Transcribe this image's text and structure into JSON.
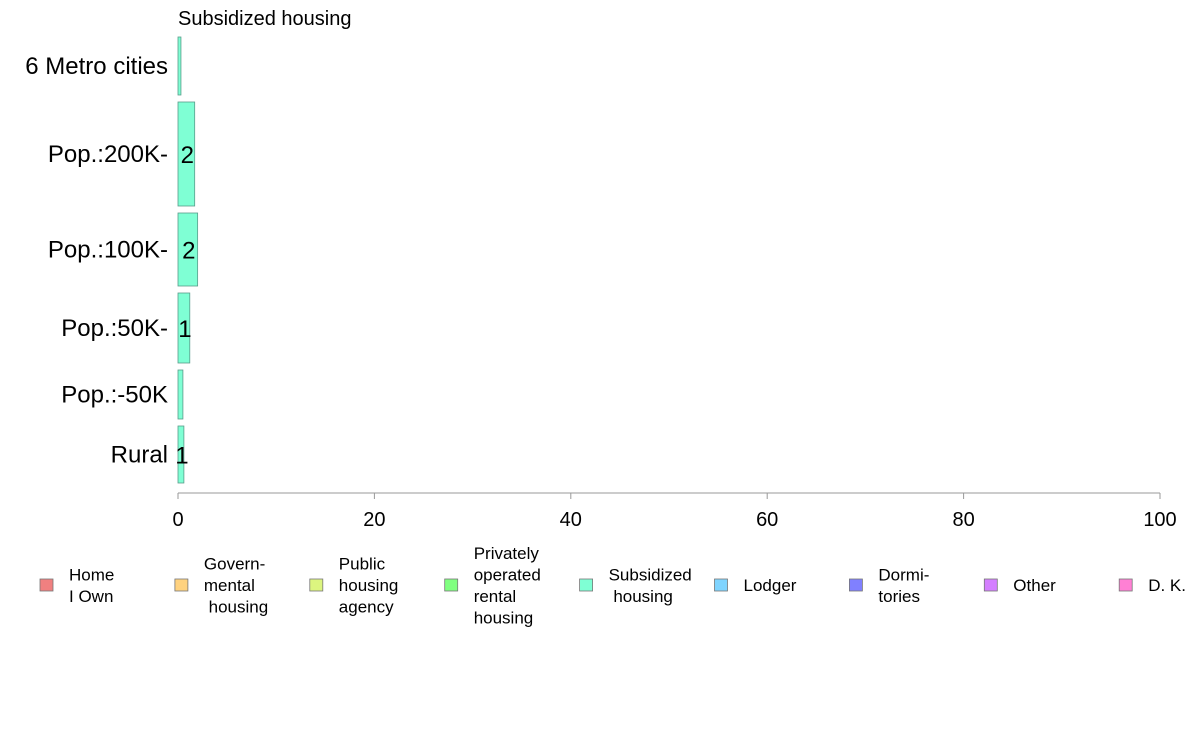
{
  "chart_data": {
    "type": "bar",
    "orientation": "horizontal",
    "title": "Subsidized housing",
    "categories": [
      "6 Metro cities",
      "Pop.:200K-",
      "Pop.:100K-",
      "Pop.:50K-",
      "Pop.:-50K",
      "Rural"
    ],
    "values": [
      0.3,
      1.7,
      2.0,
      1.2,
      0.5,
      0.6
    ],
    "data_labels": [
      "",
      "2",
      "2",
      "1",
      "",
      "1"
    ],
    "bar_color": "#7fffd4",
    "xlim": [
      0,
      100
    ],
    "x_ticks": [
      "0",
      "20",
      "40",
      "60",
      "80",
      "100"
    ],
    "grid": false,
    "legend_position": "bottom",
    "legend": [
      {
        "lines": [
          "Home",
          "I Own"
        ],
        "color": "#f08080"
      },
      {
        "lines": [
          "Govern-",
          "mental",
          " housing"
        ],
        "color": "#ffd27f"
      },
      {
        "lines": [
          "Public",
          "housing",
          "agency"
        ],
        "color": "#dcf57f"
      },
      {
        "lines": [
          "Privately",
          "operated",
          "rental",
          "housing"
        ],
        "color": "#80ff80"
      },
      {
        "lines": [
          "Subsidized",
          " housing"
        ],
        "color": "#7fffd4"
      },
      {
        "lines": [
          "Lodger"
        ],
        "color": "#7fd4ff"
      },
      {
        "lines": [
          "Dormi-",
          "tories"
        ],
        "color": "#8080ff"
      },
      {
        "lines": [
          "Other"
        ],
        "color": "#d47fff"
      },
      {
        "lines": [
          "D. K."
        ],
        "color": "#ff80d4"
      }
    ]
  }
}
